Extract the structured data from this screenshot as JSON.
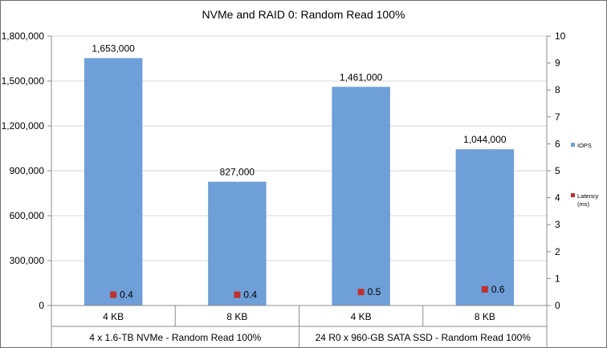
{
  "chart_data": {
    "type": "bar",
    "title": "NVMe and RAID 0: Random Read 100%",
    "categories": [
      "4 KB",
      "8 KB",
      "4 KB",
      "8 KB"
    ],
    "groups": [
      {
        "label": "4 x 1.6-TB NVMe - Random Read 100%",
        "categories": [
          "4 KB",
          "8 KB"
        ]
      },
      {
        "label": "24 R0 x 960-GB SATA SSD - Random Read 100%",
        "categories": [
          "4 KB",
          "8 KB"
        ]
      }
    ],
    "series": [
      {
        "name": "IOPS",
        "type": "bar",
        "axis": "left",
        "color": "#6f9fd8",
        "values": [
          1653000,
          827000,
          1461000,
          1044000
        ],
        "labels": [
          "1,653,000",
          "827,000",
          "1,461,000",
          "1,044,000"
        ]
      },
      {
        "name": "Latency (ms)",
        "type": "scatter",
        "axis": "right",
        "color": "#c0302b",
        "values": [
          0.4,
          0.4,
          0.5,
          0.6
        ],
        "labels": [
          "0.4",
          "0.4",
          "0.5",
          "0.6"
        ]
      }
    ],
    "y_left": {
      "min": 0,
      "max": 1800000,
      "ticks": [
        0,
        300000,
        600000,
        900000,
        1200000,
        1500000,
        1800000
      ],
      "tick_labels": [
        "0",
        "300,000",
        "600,000",
        "900,000",
        "1,200,000",
        "1,500,000",
        "1,800,000"
      ]
    },
    "y_right": {
      "min": 0,
      "max": 10,
      "ticks": [
        0,
        1,
        2,
        3,
        4,
        5,
        6,
        7,
        8,
        9,
        10
      ],
      "tick_labels": [
        "0",
        "1",
        "2",
        "3",
        "4",
        "5",
        "6",
        "7",
        "8",
        "9",
        "10"
      ]
    },
    "legend": {
      "placement": "right",
      "items": [
        {
          "lines": [
            "IOPS"
          ],
          "color": "#6f9fd8"
        },
        {
          "lines": [
            "Latency",
            "(ms)"
          ],
          "color": "#c0302b"
        }
      ]
    },
    "grid": {
      "horizontal": true,
      "gridline_color": "#d9d9d9"
    }
  }
}
